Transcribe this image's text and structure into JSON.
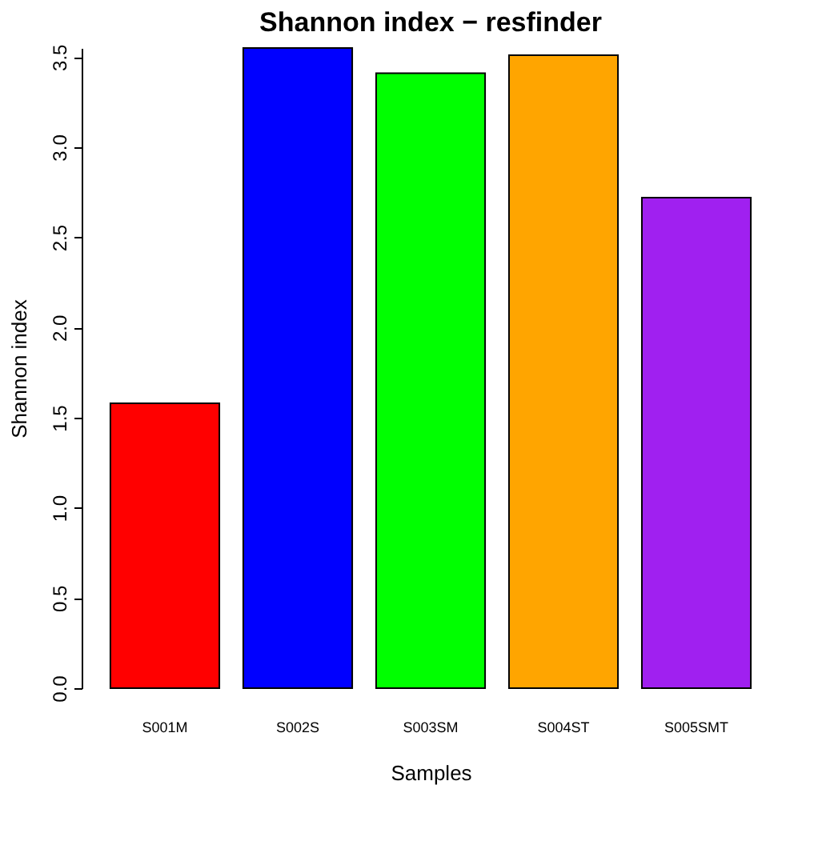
{
  "chart_data": {
    "type": "bar",
    "title": "Shannon index − resfinder",
    "xlabel": "Samples",
    "ylabel": "Shannon index",
    "categories": [
      "S001M",
      "S002S",
      "S003SM",
      "S004ST",
      "S005SMT"
    ],
    "values": [
      1.58,
      3.55,
      3.41,
      3.51,
      2.72
    ],
    "colors": [
      "#ff0000",
      "#0000ff",
      "#00ff00",
      "#ffa500",
      "#a020f0"
    ],
    "ylim": [
      0,
      3.55
    ],
    "yticks": [
      {
        "value": 0,
        "label": "0.0"
      },
      0.5,
      {
        "value": 1,
        "label": "1.0"
      },
      1.5,
      {
        "value": 2,
        "label": "2.0"
      },
      2.5,
      {
        "value": 3,
        "label": "3.0"
      },
      3.5
    ],
    "grid": false
  }
}
